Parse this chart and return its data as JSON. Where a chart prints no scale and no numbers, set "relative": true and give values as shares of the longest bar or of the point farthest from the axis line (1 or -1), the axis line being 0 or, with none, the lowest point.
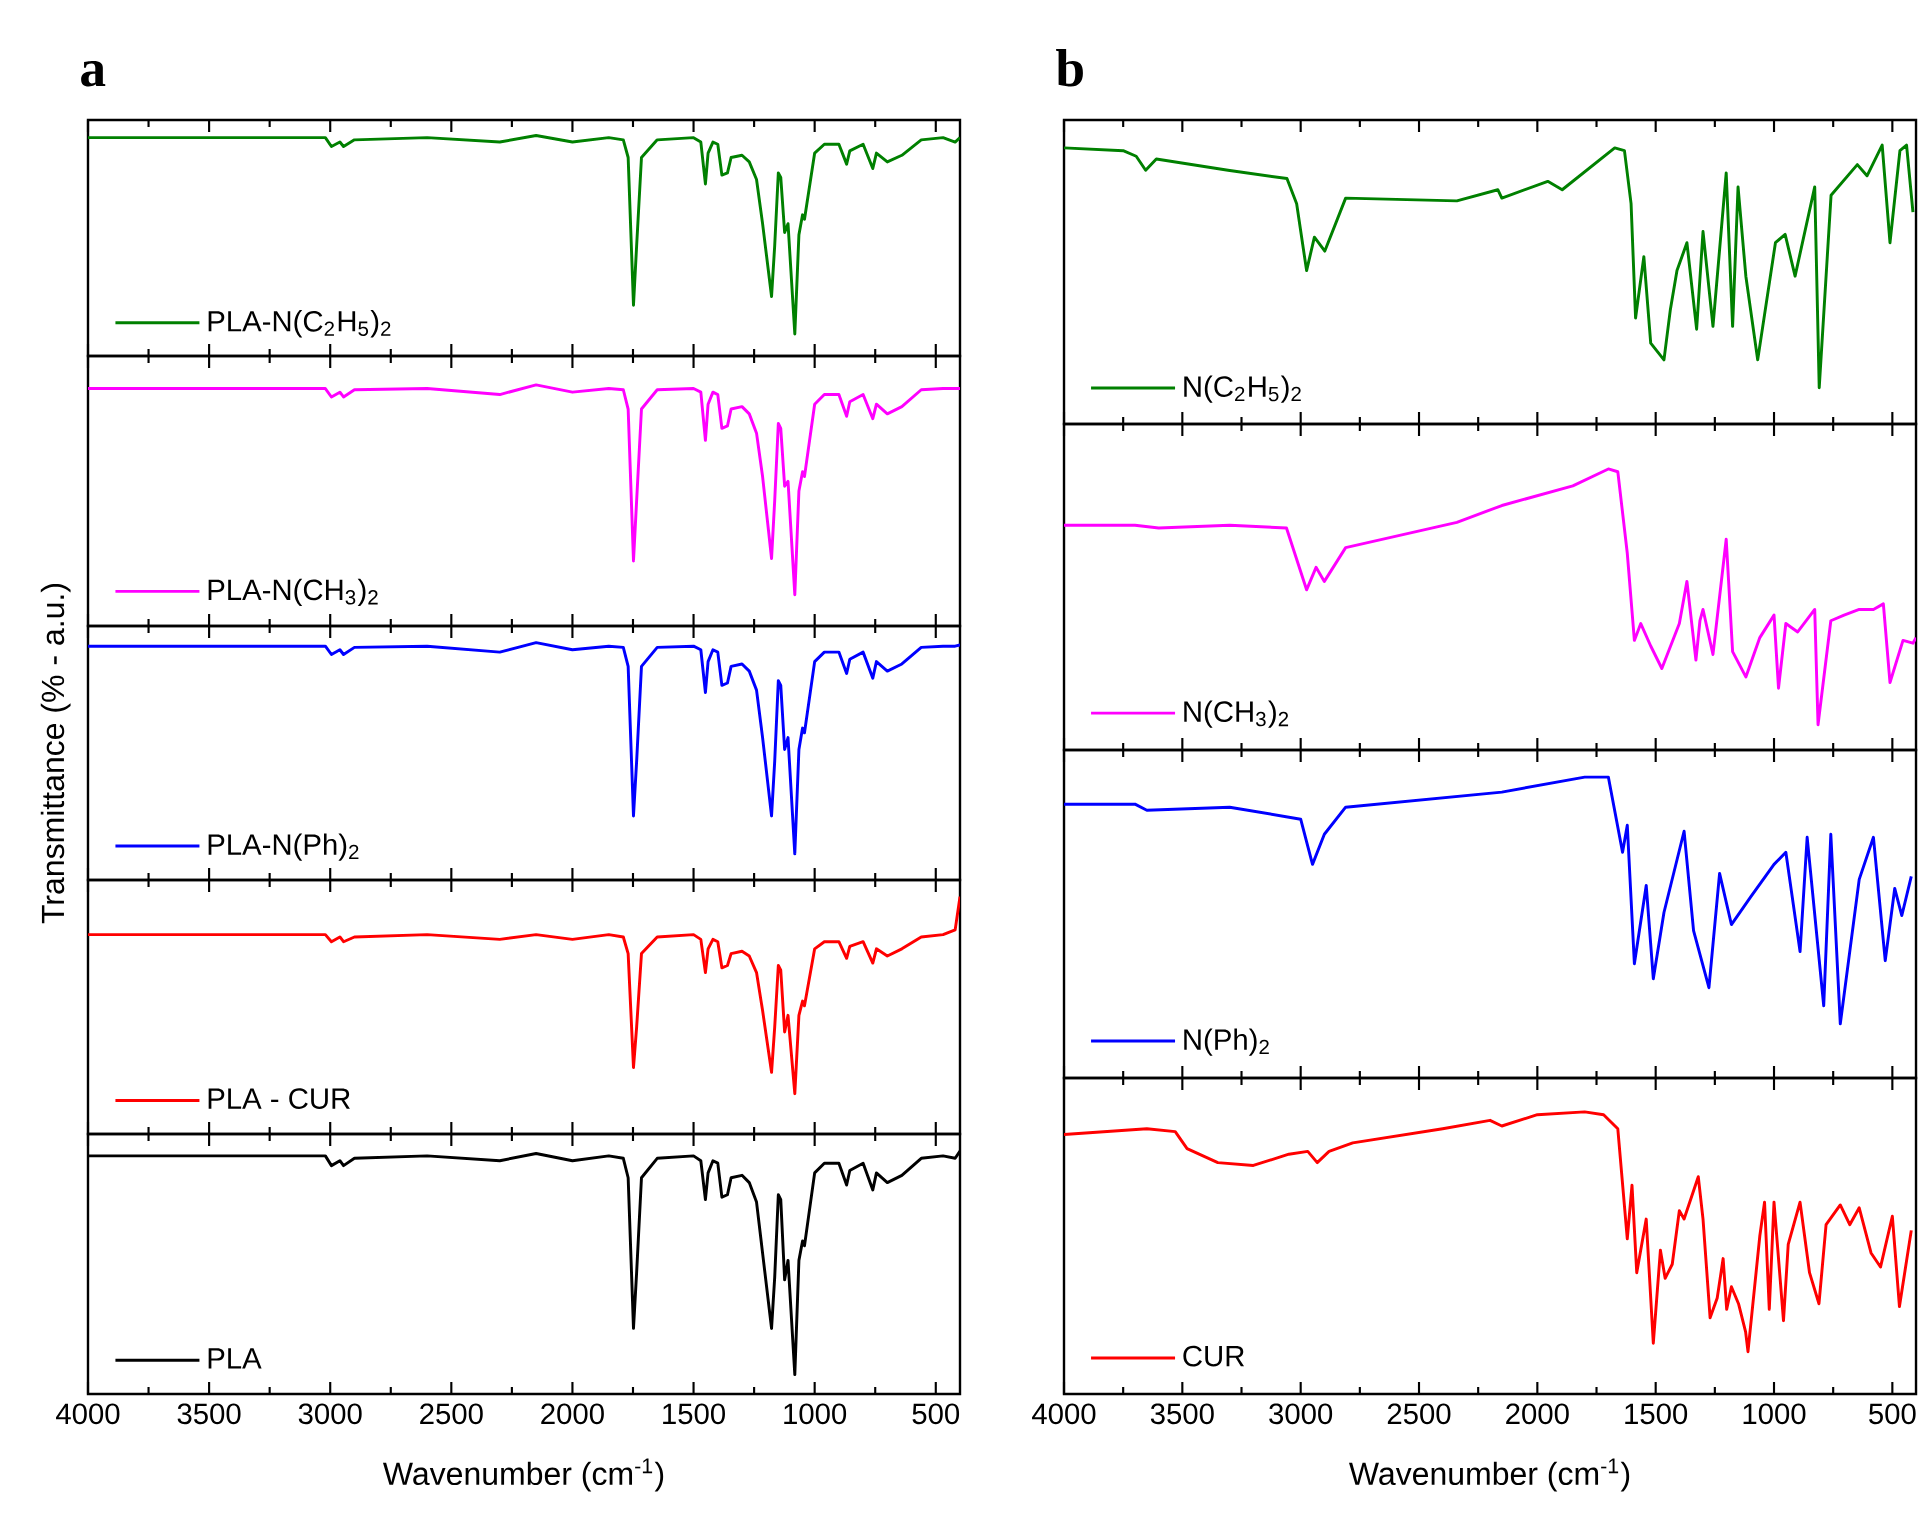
{
  "chart_data": [
    {
      "type": "line",
      "relative": true,
      "title": "a",
      "xlim": [
        4000,
        400
      ],
      "xticks": [
        4000,
        3500,
        3000,
        2500,
        2000,
        1500,
        1000,
        500
      ],
      "tick_labels": false,
      "legend": "bottom left",
      "series": [
        {
          "name": "PLA-N(C$_{2}$H$_{5}$)$_{2}$",
          "color": "#008000",
          "x": [
            4000,
            3500,
            3020,
            2995,
            2960,
            2945,
            2900,
            2600,
            2300,
            2150,
            2000,
            1850,
            1790,
            1770,
            1748,
            1735,
            1715,
            1650,
            1500,
            1470,
            1451,
            1440,
            1420,
            1400,
            1383,
            1360,
            1345,
            1300,
            1270,
            1240,
            1215,
            1178,
            1165,
            1150,
            1140,
            1124,
            1110,
            1082,
            1065,
            1050,
            1042,
            1000,
            960,
            900,
            868,
            855,
            800,
            760,
            745,
            700,
            640,
            560,
            470,
            420,
            400
          ],
          "values": [
            0.99,
            0.99,
            0.99,
            0.95,
            0.97,
            0.95,
            0.98,
            0.99,
            0.97,
            1.0,
            0.97,
            0.99,
            0.98,
            0.9,
            0.23,
            0.5,
            0.9,
            0.98,
            0.99,
            0.97,
            0.78,
            0.92,
            0.97,
            0.96,
            0.82,
            0.83,
            0.9,
            0.91,
            0.88,
            0.8,
            0.6,
            0.27,
            0.5,
            0.83,
            0.81,
            0.56,
            0.6,
            0.1,
            0.55,
            0.64,
            0.62,
            0.92,
            0.96,
            0.96,
            0.87,
            0.93,
            0.96,
            0.85,
            0.92,
            0.88,
            0.91,
            0.98,
            0.99,
            0.97,
            0.99
          ]
        }
      ]
    },
    {
      "type": "line",
      "relative": true,
      "xlim": [
        4000,
        400
      ],
      "xticks": [
        4000,
        3500,
        3000,
        2500,
        2000,
        1500,
        1000,
        500
      ],
      "tick_labels": false,
      "legend": "bottom left",
      "series": [
        {
          "name": "PLA-N(CH$_{3}$)$_{2}$",
          "color": "#ff00ff",
          "x": [
            4000,
            3500,
            3020,
            2995,
            2960,
            2945,
            2900,
            2600,
            2300,
            2150,
            2000,
            1850,
            1790,
            1770,
            1748,
            1735,
            1715,
            1650,
            1500,
            1470,
            1451,
            1440,
            1420,
            1400,
            1383,
            1360,
            1345,
            1300,
            1270,
            1240,
            1215,
            1178,
            1165,
            1150,
            1140,
            1124,
            1110,
            1082,
            1065,
            1050,
            1042,
            1000,
            960,
            900,
            868,
            855,
            800,
            760,
            745,
            700,
            640,
            560,
            470,
            420,
            400
          ],
          "values": [
            0.985,
            0.985,
            0.985,
            0.95,
            0.97,
            0.95,
            0.98,
            0.985,
            0.96,
            1.0,
            0.97,
            0.985,
            0.98,
            0.9,
            0.27,
            0.52,
            0.9,
            0.98,
            0.985,
            0.97,
            0.77,
            0.92,
            0.97,
            0.96,
            0.82,
            0.83,
            0.9,
            0.91,
            0.88,
            0.8,
            0.62,
            0.28,
            0.52,
            0.84,
            0.82,
            0.58,
            0.6,
            0.13,
            0.56,
            0.64,
            0.62,
            0.92,
            0.96,
            0.96,
            0.87,
            0.93,
            0.96,
            0.86,
            0.92,
            0.88,
            0.91,
            0.98,
            0.985,
            0.985,
            0.985
          ]
        }
      ]
    },
    {
      "type": "line",
      "relative": true,
      "xlim": [
        4000,
        400
      ],
      "xticks": [
        4000,
        3500,
        3000,
        2500,
        2000,
        1500,
        1000,
        500
      ],
      "tick_labels": false,
      "legend": "bottom left",
      "ylabel": "Transmittance (% - a.u.)",
      "series": [
        {
          "name": "PLA-N(Ph)$_{2}$",
          "color": "#0000ff",
          "x": [
            4000,
            3500,
            3020,
            2995,
            2960,
            2945,
            2900,
            2600,
            2300,
            2150,
            2000,
            1850,
            1790,
            1770,
            1748,
            1735,
            1715,
            1650,
            1500,
            1470,
            1451,
            1440,
            1420,
            1400,
            1383,
            1360,
            1345,
            1300,
            1270,
            1240,
            1215,
            1178,
            1165,
            1150,
            1140,
            1124,
            1110,
            1082,
            1065,
            1050,
            1042,
            1000,
            960,
            900,
            868,
            855,
            800,
            760,
            745,
            700,
            640,
            560,
            470,
            420,
            400
          ],
          "values": [
            0.985,
            0.985,
            0.985,
            0.95,
            0.97,
            0.95,
            0.98,
            0.985,
            0.96,
            1.0,
            0.97,
            0.985,
            0.98,
            0.9,
            0.27,
            0.5,
            0.9,
            0.98,
            0.985,
            0.97,
            0.79,
            0.92,
            0.97,
            0.96,
            0.82,
            0.83,
            0.9,
            0.91,
            0.88,
            0.8,
            0.6,
            0.27,
            0.5,
            0.84,
            0.82,
            0.55,
            0.6,
            0.11,
            0.55,
            0.64,
            0.62,
            0.92,
            0.96,
            0.96,
            0.87,
            0.93,
            0.96,
            0.85,
            0.92,
            0.88,
            0.91,
            0.98,
            0.985,
            0.985,
            0.99
          ]
        }
      ]
    },
    {
      "type": "line",
      "relative": true,
      "xlim": [
        4000,
        400
      ],
      "xticks": [
        4000,
        3500,
        3000,
        2500,
        2000,
        1500,
        1000,
        500
      ],
      "tick_labels": false,
      "legend": "bottom left",
      "series": [
        {
          "name": "PLA - CUR",
          "color": "#ff0000",
          "x": [
            4000,
            3500,
            3020,
            2995,
            2960,
            2945,
            2900,
            2600,
            2300,
            2150,
            2000,
            1850,
            1790,
            1770,
            1748,
            1735,
            1715,
            1650,
            1500,
            1470,
            1451,
            1440,
            1420,
            1400,
            1383,
            1360,
            1345,
            1300,
            1270,
            1240,
            1215,
            1178,
            1165,
            1150,
            1140,
            1124,
            1110,
            1082,
            1065,
            1050,
            1042,
            1000,
            960,
            900,
            868,
            855,
            800,
            760,
            745,
            700,
            640,
            560,
            470,
            420,
            400
          ],
          "values": [
            0.84,
            0.84,
            0.84,
            0.81,
            0.83,
            0.81,
            0.83,
            0.84,
            0.82,
            0.84,
            0.82,
            0.84,
            0.83,
            0.76,
            0.28,
            0.45,
            0.76,
            0.83,
            0.84,
            0.82,
            0.68,
            0.78,
            0.82,
            0.81,
            0.7,
            0.71,
            0.76,
            0.77,
            0.75,
            0.68,
            0.52,
            0.26,
            0.45,
            0.71,
            0.69,
            0.43,
            0.5,
            0.17,
            0.5,
            0.56,
            0.54,
            0.78,
            0.81,
            0.81,
            0.74,
            0.79,
            0.81,
            0.72,
            0.78,
            0.75,
            0.78,
            0.83,
            0.84,
            0.86,
            1.0
          ]
        }
      ]
    },
    {
      "type": "line",
      "relative": true,
      "xlim": [
        4000,
        400
      ],
      "xticks": [
        4000,
        3500,
        3000,
        2500,
        2000,
        1500,
        1000,
        500
      ],
      "tick_labels": "x",
      "legend": "bottom left",
      "xlabel": "Wavenumber (cm$^{-1}$)",
      "series": [
        {
          "name": "PLA",
          "color": "#000000",
          "x": [
            4000,
            3500,
            3020,
            2995,
            2960,
            2945,
            2900,
            2600,
            2300,
            2150,
            2000,
            1850,
            1790,
            1770,
            1748,
            1735,
            1715,
            1650,
            1500,
            1470,
            1451,
            1440,
            1420,
            1400,
            1383,
            1360,
            1345,
            1300,
            1270,
            1240,
            1215,
            1178,
            1165,
            1150,
            1140,
            1124,
            1110,
            1082,
            1065,
            1050,
            1042,
            1000,
            960,
            900,
            868,
            855,
            800,
            760,
            745,
            700,
            640,
            560,
            470,
            420,
            400
          ],
          "values": [
            0.98,
            0.98,
            0.98,
            0.94,
            0.96,
            0.94,
            0.97,
            0.98,
            0.96,
            0.99,
            0.96,
            0.98,
            0.97,
            0.89,
            0.27,
            0.5,
            0.89,
            0.97,
            0.98,
            0.96,
            0.8,
            0.91,
            0.96,
            0.95,
            0.81,
            0.82,
            0.89,
            0.9,
            0.87,
            0.79,
            0.58,
            0.27,
            0.48,
            0.82,
            0.8,
            0.47,
            0.55,
            0.08,
            0.55,
            0.63,
            0.61,
            0.91,
            0.95,
            0.95,
            0.86,
            0.92,
            0.95,
            0.84,
            0.91,
            0.87,
            0.9,
            0.97,
            0.98,
            0.97,
            1.0
          ]
        }
      ]
    },
    {
      "type": "line",
      "relative": true,
      "title": "b",
      "xlim": [
        4000,
        400
      ],
      "xticks": [
        4000,
        3500,
        3000,
        2500,
        2000,
        1500,
        1000,
        500
      ],
      "tick_labels": false,
      "legend": "bottom left",
      "series": [
        {
          "name": "N(C$_{2}$H$_{5}$)$_{2}$",
          "color": "#008000",
          "x": [
            4000,
            3750,
            3695,
            3655,
            3610,
            3307,
            3058,
            3017,
            2975,
            2942,
            2898,
            2810,
            2340,
            2167,
            2150,
            1956,
            1895,
            1673,
            1632,
            1604,
            1585,
            1550,
            1521,
            1465,
            1438,
            1410,
            1368,
            1327,
            1300,
            1258,
            1202,
            1175,
            1152,
            1119,
            1069,
            994,
            953,
            911,
            828,
            809,
            759,
            648,
            607,
            543,
            510,
            468,
            440,
            413
          ],
          "values": [
            0.99,
            0.98,
            0.96,
            0.91,
            0.95,
            0.91,
            0.88,
            0.79,
            0.55,
            0.67,
            0.62,
            0.81,
            0.8,
            0.84,
            0.81,
            0.87,
            0.84,
            0.99,
            0.98,
            0.79,
            0.38,
            0.6,
            0.29,
            0.23,
            0.41,
            0.55,
            0.65,
            0.34,
            0.69,
            0.35,
            0.9,
            0.35,
            0.85,
            0.53,
            0.23,
            0.65,
            0.68,
            0.53,
            0.85,
            0.13,
            0.82,
            0.93,
            0.89,
            1.0,
            0.65,
            0.98,
            1.0,
            0.76
          ]
        }
      ]
    },
    {
      "type": "line",
      "relative": true,
      "xlim": [
        4000,
        400
      ],
      "xticks": [
        4000,
        3500,
        3000,
        2500,
        2000,
        1500,
        1000,
        500
      ],
      "tick_labels": false,
      "legend": "bottom left",
      "series": [
        {
          "name": "N(CH$_{3}$)$_{2}$",
          "color": "#ff00ff",
          "x": [
            4000,
            3700,
            3600,
            3300,
            3060,
            2975,
            2935,
            2900,
            2810,
            2340,
            2150,
            1850,
            1700,
            1660,
            1620,
            1590,
            1563,
            1521,
            1474,
            1400,
            1368,
            1330,
            1313,
            1300,
            1258,
            1202,
            1175,
            1119,
            1060,
            1000,
            981,
            950,
            900,
            828,
            814,
            760,
            704,
            640,
            580,
            538,
            510,
            455,
            413,
            400
          ],
          "values": [
            0.8,
            0.8,
            0.79,
            0.8,
            0.79,
            0.57,
            0.65,
            0.6,
            0.72,
            0.81,
            0.87,
            0.94,
            1.0,
            0.99,
            0.7,
            0.39,
            0.45,
            0.37,
            0.29,
            0.45,
            0.6,
            0.32,
            0.46,
            0.5,
            0.34,
            0.75,
            0.35,
            0.26,
            0.4,
            0.48,
            0.22,
            0.45,
            0.42,
            0.5,
            0.09,
            0.46,
            0.48,
            0.5,
            0.5,
            0.52,
            0.24,
            0.39,
            0.38,
            0.4
          ]
        }
      ]
    },
    {
      "type": "line",
      "relative": true,
      "xlim": [
        4000,
        400
      ],
      "xticks": [
        4000,
        3500,
        3000,
        2500,
        2000,
        1500,
        1000,
        500
      ],
      "tick_labels": false,
      "legend": "bottom left",
      "series": [
        {
          "name": "N(Ph)$_{2}$",
          "color": "#0000ff",
          "x": [
            4000,
            3700,
            3650,
            3300,
            3000,
            2950,
            2900,
            2810,
            2150,
            1800,
            1700,
            1640,
            1620,
            1590,
            1540,
            1510,
            1465,
            1380,
            1340,
            1275,
            1230,
            1180,
            1100,
            1000,
            950,
            890,
            860,
            790,
            760,
            720,
            640,
            580,
            530,
            490,
            460,
            420
          ],
          "values": [
            0.91,
            0.91,
            0.89,
            0.9,
            0.86,
            0.71,
            0.81,
            0.9,
            0.95,
            1.0,
            1.0,
            0.75,
            0.84,
            0.38,
            0.64,
            0.33,
            0.55,
            0.82,
            0.49,
            0.3,
            0.68,
            0.51,
            0.6,
            0.71,
            0.75,
            0.42,
            0.8,
            0.24,
            0.81,
            0.18,
            0.66,
            0.8,
            0.39,
            0.63,
            0.54,
            0.67
          ]
        }
      ]
    },
    {
      "type": "line",
      "relative": true,
      "xlim": [
        4000,
        400
      ],
      "xticks": [
        4000,
        3500,
        3000,
        2500,
        2000,
        1500,
        1000,
        500
      ],
      "tick_labels": "x",
      "legend": "bottom left",
      "xlabel": "Wavenumber (cm$^{-1}$)",
      "series": [
        {
          "name": "CUR",
          "color": "#ff0000",
          "x": [
            4000,
            3650,
            3530,
            3480,
            3350,
            3200,
            3050,
            2970,
            2930,
            2880,
            2780,
            2400,
            2200,
            2150,
            2000,
            1800,
            1720,
            1660,
            1620,
            1600,
            1580,
            1540,
            1510,
            1480,
            1460,
            1430,
            1400,
            1380,
            1320,
            1300,
            1270,
            1240,
            1215,
            1200,
            1180,
            1150,
            1120,
            1110,
            1060,
            1040,
            1020,
            1000,
            960,
            940,
            890,
            850,
            810,
            780,
            720,
            680,
            640,
            590,
            550,
            500,
            470,
            420
          ],
          "values": [
            0.92,
            0.94,
            0.93,
            0.87,
            0.82,
            0.81,
            0.85,
            0.86,
            0.82,
            0.86,
            0.89,
            0.94,
            0.97,
            0.95,
            0.99,
            1.0,
            0.99,
            0.94,
            0.55,
            0.74,
            0.43,
            0.62,
            0.18,
            0.51,
            0.41,
            0.46,
            0.65,
            0.62,
            0.77,
            0.62,
            0.27,
            0.34,
            0.48,
            0.3,
            0.38,
            0.32,
            0.22,
            0.15,
            0.56,
            0.68,
            0.3,
            0.68,
            0.26,
            0.53,
            0.68,
            0.43,
            0.32,
            0.6,
            0.67,
            0.6,
            0.66,
            0.5,
            0.45,
            0.63,
            0.31,
            0.58
          ]
        }
      ]
    }
  ]
}
